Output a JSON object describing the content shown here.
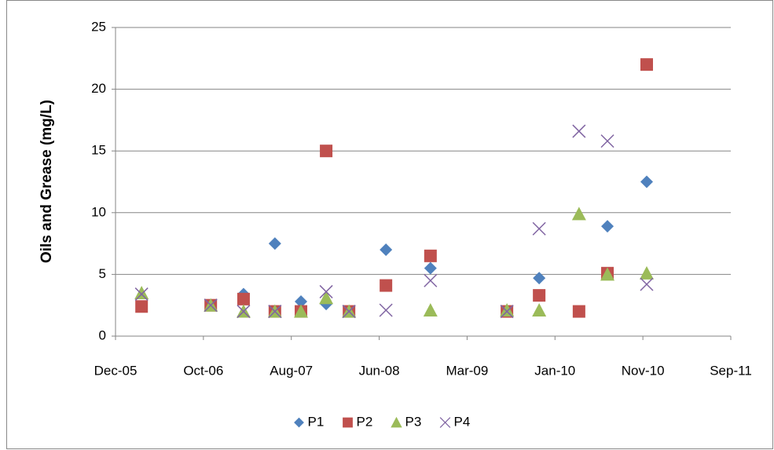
{
  "chart_data": {
    "type": "scatter",
    "y_label": "Oils and Grease (mg/L)",
    "xlim": [
      38700,
      40800
    ],
    "xticks": [
      {
        "value": 38700,
        "label": "Dec-05"
      },
      {
        "value": 39000,
        "label": "Oct-06"
      },
      {
        "value": 39300,
        "label": "Aug-07"
      },
      {
        "value": 39600,
        "label": "Jun-08"
      },
      {
        "value": 39900,
        "label": "Mar-09"
      },
      {
        "value": 40200,
        "label": "Jan-10"
      },
      {
        "value": 40500,
        "label": "Nov-10"
      },
      {
        "value": 40800,
        "label": "Sep-11"
      }
    ],
    "ylim": [
      0,
      25
    ],
    "yticks": [
      0,
      5,
      10,
      15,
      20,
      25
    ],
    "grid": true,
    "legend": "bottom",
    "series": [
      {
        "name": "P1",
        "color": "#4f81bd",
        "marker": "diamond",
        "x": [
          39137,
          39244,
          39333,
          39419,
          39623,
          39775,
          40146,
          40379,
          40513
        ],
        "values": [
          3.4,
          7.5,
          2.8,
          2.6,
          7.0,
          5.5,
          4.7,
          8.9,
          12.5
        ]
      },
      {
        "name": "P2",
        "color": "#c0504d",
        "marker": "square",
        "x": [
          38789,
          39025,
          39137,
          39244,
          39333,
          39419,
          39497,
          39623,
          39775,
          40036,
          40146,
          40282,
          40379,
          40513
        ],
        "values": [
          2.4,
          2.5,
          3.0,
          2.0,
          2.0,
          15.0,
          2.0,
          4.1,
          6.5,
          2.0,
          3.3,
          2.0,
          5.1,
          22.0
        ]
      },
      {
        "name": "P3",
        "color": "#9bbb59",
        "marker": "triangle",
        "x": [
          38789,
          39025,
          39137,
          39244,
          39333,
          39419,
          39497,
          39775,
          40036,
          40146,
          40282,
          40379,
          40513
        ],
        "values": [
          3.5,
          2.5,
          2.0,
          2.0,
          2.0,
          3.1,
          2.0,
          2.1,
          2.1,
          2.1,
          9.9,
          5.0,
          5.1
        ]
      },
      {
        "name": "P4",
        "color": "#8064a2",
        "marker": "x",
        "x": [
          38789,
          39025,
          39137,
          39244,
          39419,
          39497,
          39623,
          39775,
          40036,
          40146,
          40282,
          40379,
          40513
        ],
        "values": [
          3.4,
          2.5,
          2.0,
          2.0,
          3.6,
          2.0,
          2.1,
          4.5,
          2.0,
          8.7,
          16.6,
          15.8,
          4.2
        ]
      }
    ]
  }
}
